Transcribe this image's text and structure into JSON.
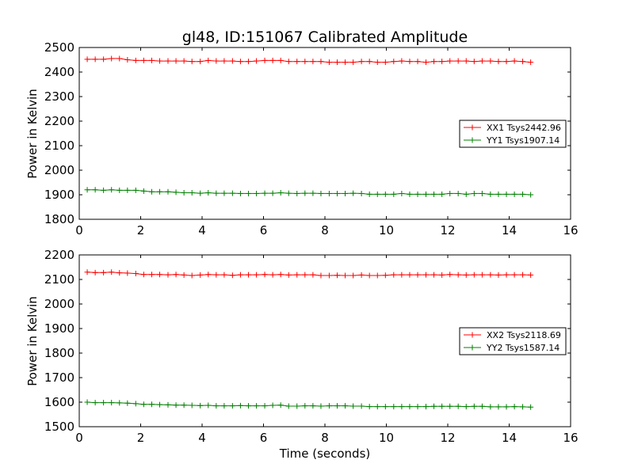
{
  "chart_data": [
    {
      "type": "line",
      "title": "gl48, ID:151067 Calibrated Amplitude",
      "xlabel": "",
      "ylabel": "Power in Kelvin",
      "xlim": [
        0,
        16
      ],
      "ylim": [
        1800,
        2500
      ],
      "xticks": [
        "0",
        "2",
        "4",
        "6",
        "8",
        "10",
        "12",
        "14",
        "16"
      ],
      "yticks": [
        "1800",
        "1900",
        "2000",
        "2100",
        "2200",
        "2300",
        "2400",
        "2500"
      ],
      "legend_position": "center-right",
      "series": [
        {
          "name": "XX1 Tsys2442.96",
          "color": "#ff0000",
          "x": [
            0.26,
            0.52,
            0.79,
            1.05,
            1.31,
            1.57,
            1.84,
            2.1,
            2.36,
            2.62,
            2.89,
            3.15,
            3.41,
            3.67,
            3.94,
            4.2,
            4.46,
            4.72,
            4.99,
            5.25,
            5.51,
            5.77,
            6.04,
            6.3,
            6.56,
            6.82,
            7.09,
            7.35,
            7.61,
            7.87,
            8.14,
            8.4,
            8.66,
            8.92,
            9.19,
            9.45,
            9.71,
            9.97,
            10.24,
            10.5,
            10.76,
            11.02,
            11.29,
            11.55,
            11.81,
            12.07,
            12.34,
            12.6,
            12.86,
            13.12,
            13.39,
            13.65,
            13.91,
            14.17,
            14.44,
            14.7
          ],
          "y": [
            2452,
            2452,
            2452,
            2455,
            2455,
            2450,
            2447,
            2447,
            2447,
            2445,
            2445,
            2445,
            2445,
            2443,
            2443,
            2447,
            2445,
            2445,
            2445,
            2443,
            2443,
            2445,
            2447,
            2447,
            2447,
            2443,
            2443,
            2443,
            2443,
            2443,
            2440,
            2440,
            2440,
            2440,
            2443,
            2443,
            2440,
            2440,
            2443,
            2445,
            2443,
            2443,
            2440,
            2443,
            2443,
            2445,
            2445,
            2445,
            2443,
            2445,
            2445,
            2443,
            2443,
            2445,
            2443,
            2440
          ]
        },
        {
          "name": "YY1 Tsys1907.14",
          "color": "#008000",
          "x": [
            0.26,
            0.52,
            0.79,
            1.05,
            1.31,
            1.57,
            1.84,
            2.1,
            2.36,
            2.62,
            2.89,
            3.15,
            3.41,
            3.67,
            3.94,
            4.2,
            4.46,
            4.72,
            4.99,
            5.25,
            5.51,
            5.77,
            6.04,
            6.3,
            6.56,
            6.82,
            7.09,
            7.35,
            7.61,
            7.87,
            8.14,
            8.4,
            8.66,
            8.92,
            9.19,
            9.45,
            9.71,
            9.97,
            10.24,
            10.5,
            10.76,
            11.02,
            11.29,
            11.55,
            11.81,
            12.07,
            12.34,
            12.6,
            12.86,
            13.12,
            13.39,
            13.65,
            13.91,
            14.17,
            14.44,
            14.7
          ],
          "y": [
            1920,
            1920,
            1918,
            1920,
            1918,
            1918,
            1918,
            1915,
            1912,
            1912,
            1912,
            1910,
            1908,
            1908,
            1906,
            1908,
            1906,
            1906,
            1906,
            1905,
            1905,
            1905,
            1906,
            1906,
            1908,
            1906,
            1905,
            1906,
            1906,
            1905,
            1905,
            1905,
            1905,
            1906,
            1905,
            1902,
            1902,
            1902,
            1902,
            1905,
            1902,
            1902,
            1902,
            1902,
            1902,
            1905,
            1905,
            1902,
            1905,
            1905,
            1902,
            1902,
            1902,
            1902,
            1902,
            1900
          ]
        }
      ]
    },
    {
      "type": "line",
      "title": "",
      "xlabel": "Time (seconds)",
      "ylabel": "Power in Kelvin",
      "xlim": [
        0,
        16
      ],
      "ylim": [
        1500,
        2200
      ],
      "xticks": [
        "0",
        "2",
        "4",
        "6",
        "8",
        "10",
        "12",
        "14",
        "16"
      ],
      "yticks": [
        "1500",
        "1600",
        "1700",
        "1800",
        "1900",
        "2000",
        "2100",
        "2200"
      ],
      "legend_position": "center-right",
      "series": [
        {
          "name": "XX2 Tsys2118.69",
          "color": "#ff0000",
          "x": [
            0.26,
            0.52,
            0.79,
            1.05,
            1.31,
            1.57,
            1.84,
            2.1,
            2.36,
            2.62,
            2.89,
            3.15,
            3.41,
            3.67,
            3.94,
            4.2,
            4.46,
            4.72,
            4.99,
            5.25,
            5.51,
            5.77,
            6.04,
            6.3,
            6.56,
            6.82,
            7.09,
            7.35,
            7.61,
            7.87,
            8.14,
            8.4,
            8.66,
            8.92,
            9.19,
            9.45,
            9.71,
            9.97,
            10.24,
            10.5,
            10.76,
            11.02,
            11.29,
            11.55,
            11.81,
            12.07,
            12.34,
            12.6,
            12.86,
            13.12,
            13.39,
            13.65,
            13.91,
            14.17,
            14.44,
            14.7
          ],
          "y": [
            2130,
            2128,
            2128,
            2130,
            2127,
            2126,
            2124,
            2120,
            2120,
            2120,
            2119,
            2120,
            2118,
            2116,
            2118,
            2120,
            2119,
            2119,
            2117,
            2119,
            2119,
            2119,
            2120,
            2119,
            2120,
            2118,
            2119,
            2119,
            2119,
            2116,
            2116,
            2117,
            2116,
            2116,
            2118,
            2116,
            2116,
            2117,
            2119,
            2119,
            2119,
            2119,
            2119,
            2119,
            2118,
            2120,
            2119,
            2118,
            2119,
            2119,
            2119,
            2118,
            2119,
            2119,
            2119,
            2118
          ]
        },
        {
          "name": "YY2 Tsys1587.14",
          "color": "#008000",
          "x": [
            0.26,
            0.52,
            0.79,
            1.05,
            1.31,
            1.57,
            1.84,
            2.1,
            2.36,
            2.62,
            2.89,
            3.15,
            3.41,
            3.67,
            3.94,
            4.2,
            4.46,
            4.72,
            4.99,
            5.25,
            5.51,
            5.77,
            6.04,
            6.3,
            6.56,
            6.82,
            7.09,
            7.35,
            7.61,
            7.87,
            8.14,
            8.4,
            8.66,
            8.92,
            9.19,
            9.45,
            9.71,
            9.97,
            10.24,
            10.5,
            10.76,
            11.02,
            11.29,
            11.55,
            11.81,
            12.07,
            12.34,
            12.6,
            12.86,
            13.12,
            13.39,
            13.65,
            13.91,
            14.17,
            14.44,
            14.7
          ],
          "y": [
            1600,
            1598,
            1598,
            1598,
            1597,
            1596,
            1594,
            1591,
            1591,
            1590,
            1589,
            1588,
            1588,
            1587,
            1586,
            1587,
            1585,
            1585,
            1585,
            1586,
            1585,
            1585,
            1585,
            1587,
            1588,
            1584,
            1584,
            1585,
            1585,
            1584,
            1585,
            1585,
            1585,
            1584,
            1584,
            1582,
            1582,
            1582,
            1582,
            1582,
            1582,
            1582,
            1582,
            1583,
            1583,
            1583,
            1583,
            1582,
            1583,
            1583,
            1581,
            1581,
            1581,
            1582,
            1581,
            1580
          ]
        }
      ]
    }
  ]
}
